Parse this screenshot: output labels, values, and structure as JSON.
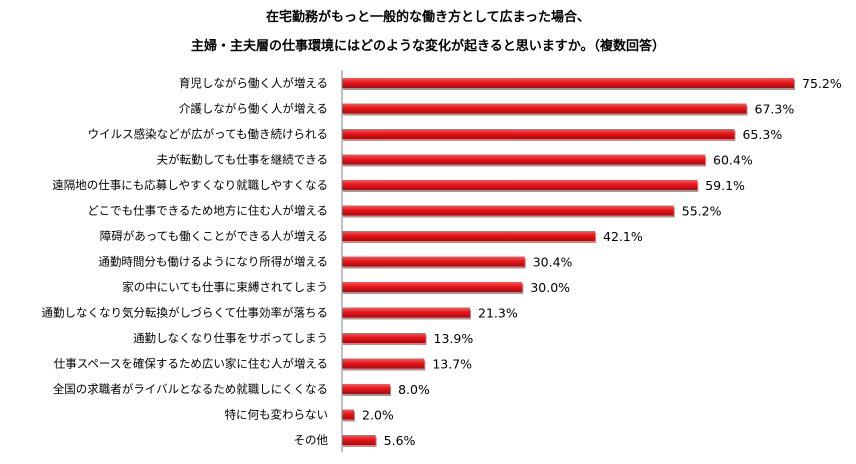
{
  "title_lines": [
    "在宅勤務がもっと一般的な働き方として広まった場合、",
    "主婦・主夫層の仕事環境にはどのような変化が起きると思いますか。（複数回答）"
  ],
  "colors": {
    "bar": "#e8161c",
    "bar_dark": "#a30d10",
    "bar_light": "#ff5a5a",
    "axis": "#808080"
  },
  "chart_data": {
    "type": "bar",
    "orientation": "horizontal",
    "title": "在宅勤務がもっと一般的な働き方として広まった場合、主婦・主夫層の仕事環境にはどのような変化が起きると思いますか。（複数回答）",
    "xlim": [
      0,
      80
    ],
    "unit": "%",
    "categories": [
      "育児しながら働く人が増える",
      "介護しながら働く人が増える",
      "ウイルス感染などが広がっても働き続けられる",
      "夫が転勤しても仕事を継続できる",
      "遠隔地の仕事にも応募しやすくなり就職しやすくなる",
      "どこでも仕事できるため地方に住む人が増える",
      "障碍があっても働くことができる人が増える",
      "通勤時間分も働けるようになり所得が増える",
      "家の中にいても仕事に束縛されてしまう",
      "通勤しなくなり気分転換がしづらくて仕事効率が落ちる",
      "通勤しなくなり仕事をサボってしまう",
      "仕事スペースを確保するため広い家に住む人が増える",
      "全国の求職者がライバルとなるため就職しにくくなる",
      "特に何も変わらない",
      "その他"
    ],
    "values": [
      75.2,
      67.3,
      65.3,
      60.4,
      59.1,
      55.2,
      42.1,
      30.4,
      30.0,
      21.3,
      13.9,
      13.7,
      8.0,
      2.0,
      5.6
    ],
    "value_labels": [
      "75.2%",
      "67.3%",
      "65.3%",
      "60.4%",
      "59.1%",
      "55.2%",
      "42.1%",
      "30.4%",
      "30.0%",
      "21.3%",
      "13.9%",
      "13.7%",
      "8.0%",
      "2.0%",
      "5.6%"
    ]
  }
}
